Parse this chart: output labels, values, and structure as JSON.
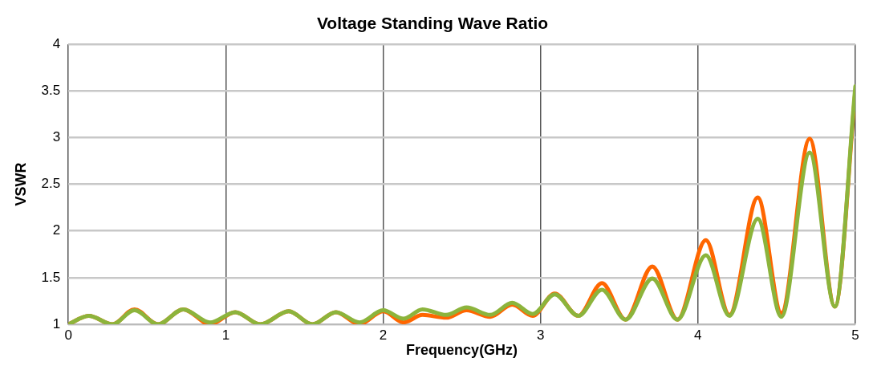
{
  "chart_data": {
    "type": "line",
    "title": "Voltage Standing Wave Ratio",
    "xlabel": "Frequency(GHz)",
    "ylabel": "VSWR",
    "x": [
      0,
      0.13,
      0.28,
      0.42,
      0.57,
      0.73,
      0.9,
      1.06,
      1.22,
      1.4,
      1.55,
      1.7,
      1.85,
      2.0,
      2.13,
      2.25,
      2.4,
      2.53,
      2.68,
      2.82,
      2.95,
      3.09,
      3.24,
      3.39,
      3.54,
      3.71,
      3.87,
      4.05,
      4.2,
      4.38,
      4.53,
      4.71,
      4.87,
      5.0
    ],
    "series": [
      {
        "color": "#ff6600",
        "values": [
          1.0,
          1.09,
          1.0,
          1.16,
          1.0,
          1.16,
          1.0,
          1.13,
          1.0,
          1.14,
          1.0,
          1.13,
          1.0,
          1.14,
          1.02,
          1.1,
          1.07,
          1.15,
          1.08,
          1.21,
          1.09,
          1.33,
          1.09,
          1.44,
          1.05,
          1.62,
          1.05,
          1.9,
          1.1,
          2.36,
          1.12,
          2.99,
          1.19,
          3.5
        ]
      },
      {
        "color": "#8cb43c",
        "values": [
          1.0,
          1.09,
          1.0,
          1.15,
          1.0,
          1.16,
          1.02,
          1.13,
          1.0,
          1.14,
          1.0,
          1.13,
          1.02,
          1.15,
          1.06,
          1.16,
          1.1,
          1.18,
          1.1,
          1.23,
          1.11,
          1.32,
          1.09,
          1.37,
          1.05,
          1.49,
          1.05,
          1.74,
          1.09,
          2.13,
          1.08,
          2.84,
          1.19,
          3.55
        ]
      }
    ],
    "xlim": [
      0,
      5
    ],
    "xticks": [
      0,
      1,
      2,
      3,
      4,
      5
    ],
    "ylim": [
      1,
      4
    ],
    "yticks": [
      1,
      1.5,
      2,
      2.5,
      3,
      3.5,
      4
    ],
    "grid": true,
    "legend": false,
    "marker": "none",
    "line_style": "solid"
  }
}
